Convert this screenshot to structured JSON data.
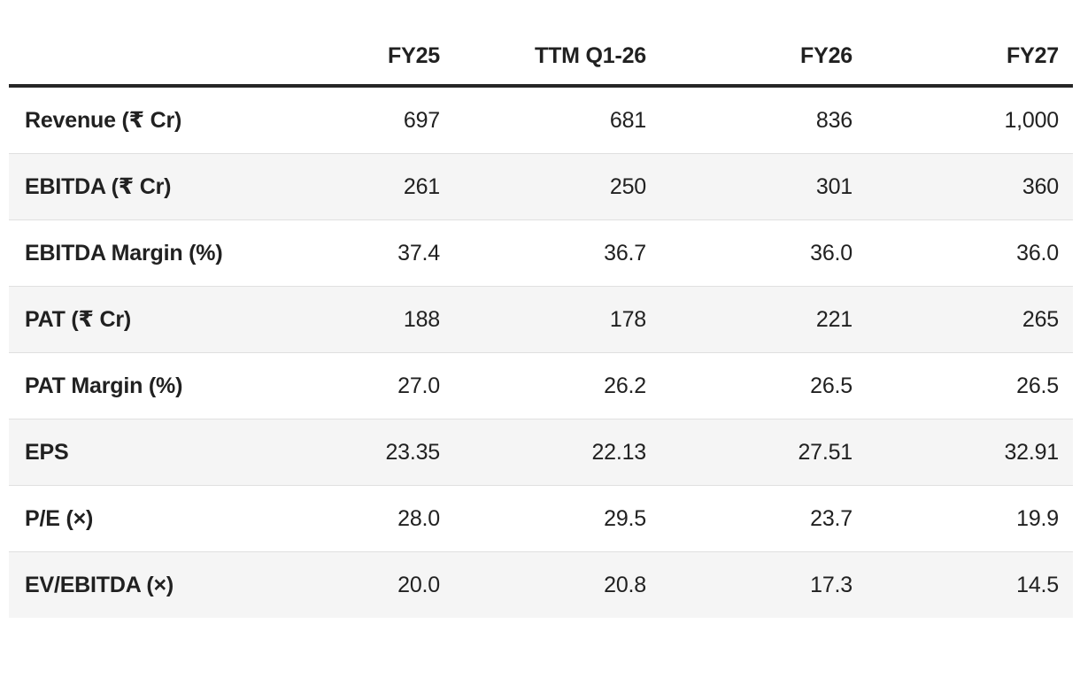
{
  "colors": {
    "text": "#212121",
    "header_border": "#262626",
    "row_divider": "#e0e0e0",
    "stripe_background": "#f5f5f5",
    "page_background": "#ffffff"
  },
  "table": {
    "columns": [
      "",
      "FY25",
      "TTM Q1-26",
      "FY26",
      "FY27"
    ],
    "rows": [
      {
        "label": "Revenue (₹ Cr)",
        "values": [
          "697",
          "681",
          "836",
          "1,000"
        ]
      },
      {
        "label": "EBITDA (₹ Cr)",
        "values": [
          "261",
          "250",
          "301",
          "360"
        ]
      },
      {
        "label": "EBITDA Margin (%)",
        "values": [
          "37.4",
          "36.7",
          "36.0",
          "36.0"
        ]
      },
      {
        "label": "PAT (₹ Cr)",
        "values": [
          "188",
          "178",
          "221",
          "265"
        ]
      },
      {
        "label": "PAT Margin (%)",
        "values": [
          "27.0",
          "26.2",
          "26.5",
          "26.5"
        ]
      },
      {
        "label": "EPS",
        "values": [
          "23.35",
          "22.13",
          "27.51",
          "32.91"
        ]
      },
      {
        "label": "P/E (×)",
        "values": [
          "28.0",
          "29.5",
          "23.7",
          "19.9"
        ]
      },
      {
        "label": "EV/EBITDA (×)",
        "values": [
          "20.0",
          "20.8",
          "17.3",
          "14.5"
        ]
      }
    ]
  },
  "chart_data": {
    "type": "table",
    "title": "Financial estimates table",
    "columns": [
      "FY25",
      "TTM Q1-26",
      "FY26",
      "FY27"
    ],
    "rows": [
      {
        "metric": "Revenue (₹ Cr)",
        "values": [
          697,
          681,
          836,
          1000
        ]
      },
      {
        "metric": "EBITDA (₹ Cr)",
        "values": [
          261,
          250,
          301,
          360
        ]
      },
      {
        "metric": "EBITDA Margin (%)",
        "values": [
          37.4,
          36.7,
          36.0,
          36.0
        ]
      },
      {
        "metric": "PAT (₹ Cr)",
        "values": [
          188,
          178,
          221,
          265
        ]
      },
      {
        "metric": "PAT Margin (%)",
        "values": [
          27.0,
          26.2,
          26.5,
          26.5
        ]
      },
      {
        "metric": "EPS",
        "values": [
          23.35,
          22.13,
          27.51,
          32.91
        ]
      },
      {
        "metric": "P/E (×)",
        "values": [
          28.0,
          29.5,
          23.7,
          19.9
        ]
      },
      {
        "metric": "EV/EBITDA (×)",
        "values": [
          20.0,
          20.8,
          17.3,
          14.5
        ]
      }
    ],
    "layout": {
      "zebra_striping": true,
      "striped_row_indexes": [
        1,
        3,
        5,
        7
      ],
      "first_column_bold": true,
      "value_alignment": "right",
      "header_rule": "thick-dark-bottom-border"
    }
  }
}
